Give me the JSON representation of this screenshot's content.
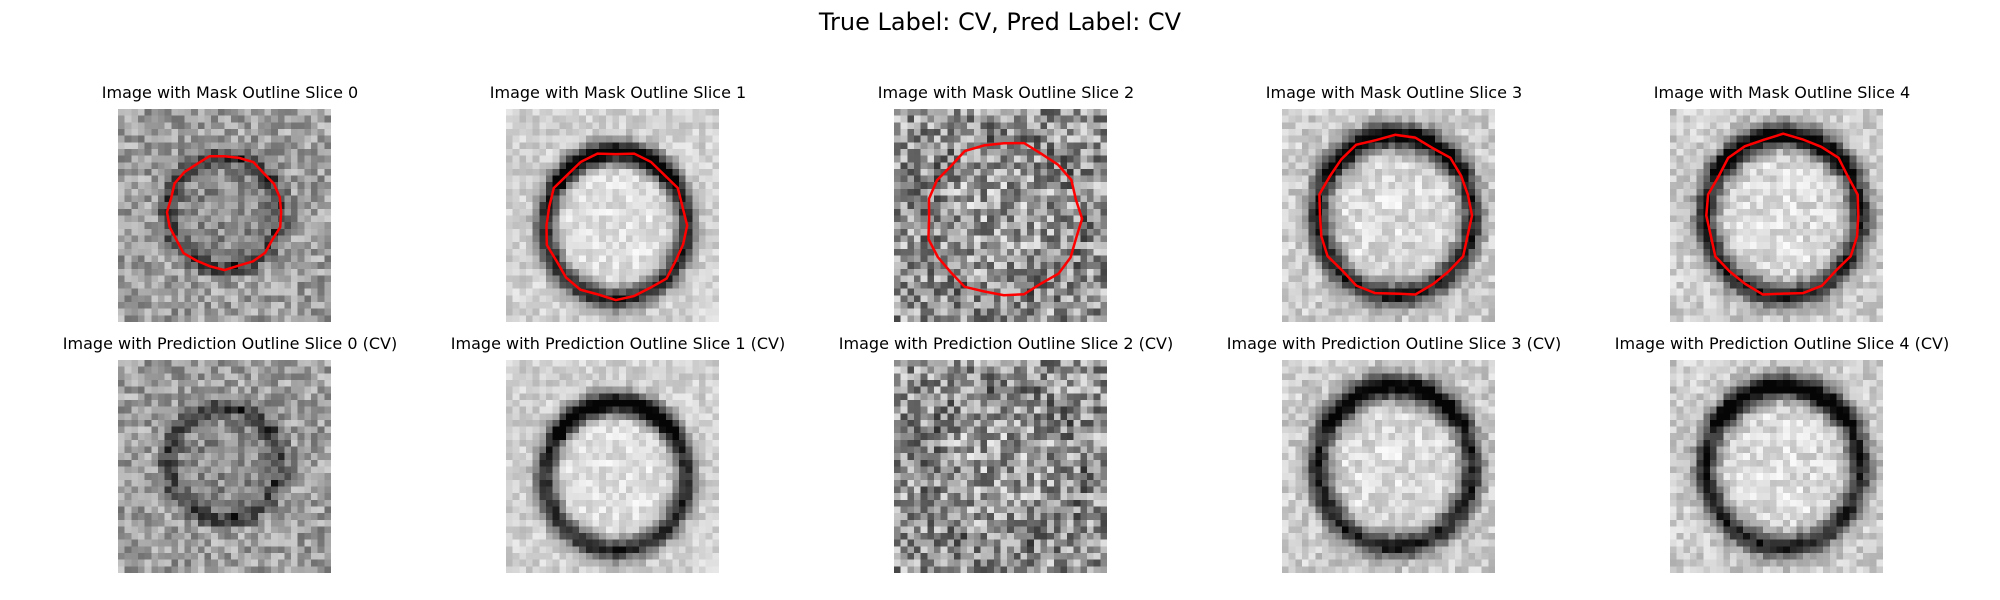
{
  "suptitle": "True Label: CV, Pred Label: CV",
  "outline_color": "#ff0000",
  "rows": [
    {
      "kind": "mask",
      "titles": [
        "Image with Mask Outline Slice 0",
        "Image with Mask Outline Slice 1",
        "Image with Mask Outline Slice 2",
        "Image with Mask Outline Slice 3",
        "Image with Mask Outline Slice 4"
      ]
    },
    {
      "kind": "prediction",
      "titles": [
        "Image with Prediction Outline Slice 0 (CV)",
        "Image with Prediction Outline Slice 1 (CV)",
        "Image with Prediction Outline Slice 2 (CV)",
        "Image with Prediction Outline Slice 3 (CV)",
        "Image with Prediction Outline Slice 4 (CV)"
      ]
    }
  ]
}
